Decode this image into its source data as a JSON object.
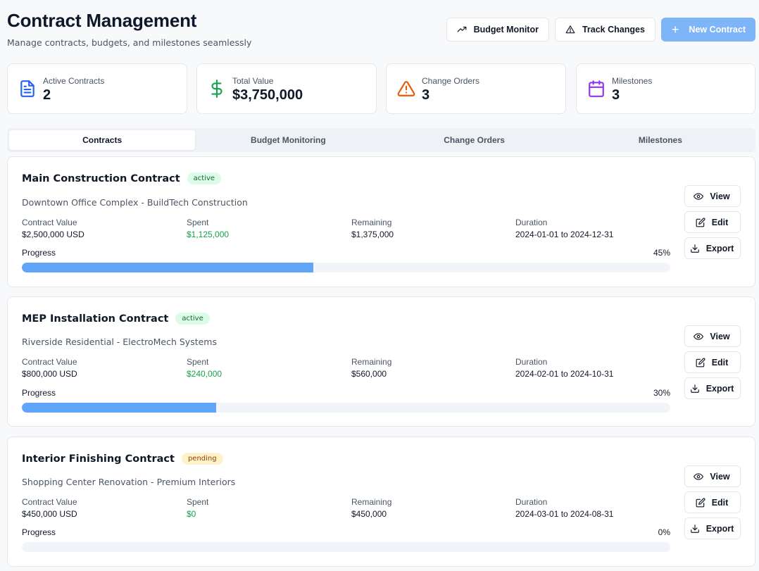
{
  "header": {
    "title": "Contract Management",
    "subtitle": "Manage contracts, budgets, and milestones seamlessly",
    "actions": {
      "budget_monitor": "Budget Monitor",
      "track_changes": "Track Changes",
      "new_contract": "New Contract"
    }
  },
  "stats": [
    {
      "label": "Active Contracts",
      "value": "2",
      "icon": "file-text-icon",
      "color": "#2563eb"
    },
    {
      "label": "Total Value",
      "value": "$3,750,000",
      "icon": "dollar-icon",
      "color": "#16a34a"
    },
    {
      "label": "Change Orders",
      "value": "3",
      "icon": "warning-icon",
      "color": "#ea580c"
    },
    {
      "label": "Milestones",
      "value": "3",
      "icon": "calendar-icon",
      "color": "#9333ea"
    }
  ],
  "tabs": [
    {
      "label": "Contracts",
      "active": true
    },
    {
      "label": "Budget Monitoring",
      "active": false
    },
    {
      "label": "Change Orders",
      "active": false
    },
    {
      "label": "Milestones",
      "active": false
    }
  ],
  "field_labels": {
    "value": "Contract Value",
    "spent": "Spent",
    "remaining": "Remaining",
    "duration": "Duration",
    "progress": "Progress"
  },
  "contract_actions": {
    "view": "View",
    "edit": "Edit",
    "export": "Export"
  },
  "contracts": [
    {
      "title": "Main Construction Contract",
      "status": "active",
      "subtitle": "Downtown Office Complex - BuildTech Construction",
      "value": "$2,500,000 USD",
      "spent": "$1,125,000",
      "remaining": "$1,375,000",
      "duration": "2024-01-01 to 2024-12-31",
      "progress_label": "45%",
      "progress": 45
    },
    {
      "title": "MEP Installation Contract",
      "status": "active",
      "subtitle": "Riverside Residential - ElectroMech Systems",
      "value": "$800,000 USD",
      "spent": "$240,000",
      "remaining": "$560,000",
      "duration": "2024-02-01 to 2024-10-31",
      "progress_label": "30%",
      "progress": 30
    },
    {
      "title": "Interior Finishing Contract",
      "status": "pending",
      "subtitle": "Shopping Center Renovation - Premium Interiors",
      "value": "$450,000 USD",
      "spent": "$0",
      "remaining": "$450,000",
      "duration": "2024-03-01 to 2024-08-31",
      "progress_label": "0%",
      "progress": 0
    }
  ]
}
